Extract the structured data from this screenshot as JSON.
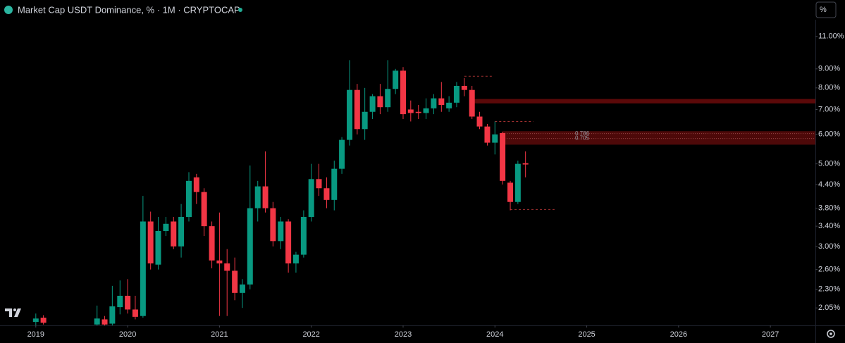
{
  "chart_data": {
    "type": "candlestick",
    "title": "Market Cap USDT Dominance, % · 1M · CRYPTOCAP",
    "scale_button": "%",
    "log_scale": true,
    "up_color": "#089981",
    "down_color": "#f23645",
    "x": [
      2019.0,
      2019.083,
      2019.667,
      2019.75,
      2019.833,
      2019.917,
      2020.0,
      2020.083,
      2020.167,
      2020.25,
      2020.333,
      2020.417,
      2020.5,
      2020.583,
      2020.667,
      2020.75,
      2020.833,
      2020.917,
      2021.0,
      2021.083,
      2021.167,
      2021.25,
      2021.333,
      2021.417,
      2021.5,
      2021.583,
      2021.667,
      2021.75,
      2021.833,
      2021.917,
      2022.0,
      2022.083,
      2022.167,
      2022.25,
      2022.333,
      2022.417,
      2022.5,
      2022.583,
      2022.667,
      2022.75,
      2022.833,
      2022.917,
      2023.0,
      2023.083,
      2023.167,
      2023.25,
      2023.333,
      2023.417,
      2023.5,
      2023.583,
      2023.667,
      2023.75,
      2023.833,
      2023.917,
      2024.0,
      2024.083,
      2024.167,
      2024.25,
      2024.333
    ],
    "open": [
      1.88,
      1.93,
      1.85,
      1.91,
      1.86,
      2.06,
      2.21,
      2.03,
      1.95,
      3.5,
      2.68,
      3.3,
      3.5,
      3.0,
      3.6,
      4.6,
      4.2,
      3.4,
      2.75,
      2.7,
      2.58,
      2.25,
      2.37,
      3.8,
      4.35,
      3.8,
      3.1,
      3.5,
      2.7,
      2.85,
      3.6,
      4.55,
      4.3,
      4.0,
      4.85,
      5.8,
      7.9,
      6.2,
      6.9,
      7.6,
      7.1,
      7.95,
      8.9,
      7.0,
      6.9,
      6.85,
      7.05,
      7.5,
      7.05,
      7.3,
      8.1,
      7.9,
      6.7,
      6.3,
      5.7,
      6.05,
      4.45,
      3.95,
      5.02
    ],
    "high": [
      1.98,
      1.96,
      2.08,
      1.95,
      2.35,
      2.43,
      2.45,
      2.21,
      4.1,
      3.72,
      3.6,
      3.6,
      3.6,
      3.9,
      4.75,
      4.7,
      4.3,
      3.5,
      3.7,
      2.95,
      2.8,
      2.45,
      4.95,
      4.5,
      5.4,
      3.95,
      3.6,
      3.55,
      2.9,
      3.75,
      5.0,
      5.0,
      4.6,
      5.1,
      5.9,
      9.5,
      8.2,
      8.0,
      7.7,
      8.2,
      9.5,
      9.0,
      9.1,
      7.4,
      7.2,
      7.5,
      7.7,
      8.3,
      7.6,
      8.3,
      8.5,
      8.1,
      6.9,
      6.4,
      6.5,
      6.1,
      4.5,
      5.1,
      5.4
    ],
    "low": [
      1.84,
      1.85,
      1.84,
      1.84,
      1.84,
      1.97,
      1.98,
      1.91,
      1.93,
      2.6,
      2.6,
      3.2,
      2.95,
      2.8,
      3.5,
      3.9,
      3.2,
      2.62,
      1.95,
      1.95,
      2.15,
      2.05,
      2.3,
      3.5,
      3.7,
      3.0,
      2.95,
      2.55,
      2.55,
      2.8,
      3.5,
      4.1,
      3.8,
      3.75,
      4.7,
      5.6,
      6.0,
      5.8,
      6.6,
      6.8,
      6.9,
      7.7,
      6.6,
      6.5,
      6.6,
      6.6,
      6.8,
      6.9,
      6.9,
      7.1,
      7.6,
      6.6,
      6.2,
      5.6,
      5.3,
      4.4,
      3.75,
      3.9,
      4.6
    ],
    "close": [
      1.92,
      1.87,
      1.92,
      1.85,
      2.07,
      2.21,
      2.03,
      1.94,
      3.5,
      2.7,
      3.3,
      3.45,
      3.0,
      3.6,
      4.5,
      4.2,
      3.4,
      2.75,
      2.7,
      2.58,
      2.25,
      2.37,
      3.8,
      4.35,
      3.8,
      3.1,
      3.5,
      2.7,
      2.85,
      3.6,
      4.55,
      4.3,
      4.0,
      4.85,
      5.8,
      7.9,
      6.2,
      6.9,
      7.6,
      7.1,
      7.95,
      8.9,
      6.8,
      6.85,
      6.85,
      7.05,
      7.5,
      7.2,
      7.3,
      8.1,
      7.9,
      6.7,
      6.3,
      5.7,
      6.0,
      4.5,
      3.95,
      5.0,
      4.98
    ],
    "zones": [
      {
        "low": 7.27,
        "high": 7.47,
        "x_start": 2023.75,
        "color": "#6b0b0b"
      },
      {
        "low": 5.63,
        "high": 6.12,
        "x_start": 2024.083,
        "color": "#5a0a0a"
      }
    ],
    "fib_levels": [
      {
        "ratio": 0.786,
        "value": 6.03
      },
      {
        "ratio": 0.705,
        "value": 5.85
      }
    ],
    "levels": [
      {
        "value": 8.6,
        "x_start": 2023.667,
        "x_end": 2023.966
      },
      {
        "value": 6.5,
        "x_start": 2024.0,
        "x_end": 2024.418
      },
      {
        "value": 3.77,
        "x_start": 2024.167,
        "x_end": 2024.649
      }
    ],
    "ylim": [
      1.84,
      12.2
    ],
    "yticks": [
      {
        "value": 11,
        "label": "11.00%"
      },
      {
        "value": 9,
        "label": "9.00%"
      },
      {
        "value": 8,
        "label": "8.00%"
      },
      {
        "value": 7,
        "label": "7.00%"
      },
      {
        "value": 6,
        "label": "6.00%"
      },
      {
        "value": 5,
        "label": "5.00%"
      },
      {
        "value": 4.4,
        "label": "4.40%"
      },
      {
        "value": 3.8,
        "label": "3.80%"
      },
      {
        "value": 3.4,
        "label": "3.40%"
      },
      {
        "value": 3,
        "label": "3.00%"
      },
      {
        "value": 2.6,
        "label": "2.60%"
      },
      {
        "value": 2.3,
        "label": "2.30%"
      },
      {
        "value": 2.05,
        "label": "2.05%"
      }
    ],
    "xlim": [
      2018.61,
      2027.49
    ],
    "xticks": [
      2019,
      2020,
      2021,
      2022,
      2023,
      2024,
      2025,
      2026,
      2027
    ]
  }
}
